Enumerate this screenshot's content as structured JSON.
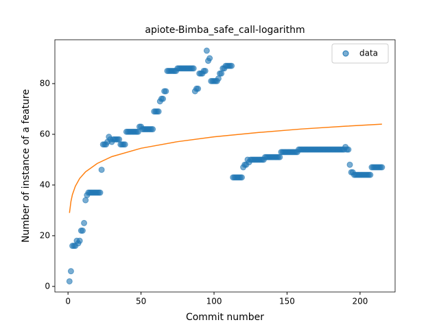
{
  "chart_data": {
    "type": "scatter",
    "title": "apiote-Bimba_safe_call-logarithm",
    "xlabel": "Commit number",
    "ylabel": "Number of instance of a feature",
    "x": [
      1,
      2,
      3,
      4,
      5,
      6,
      7,
      8,
      9,
      10,
      11,
      12,
      13,
      14,
      15,
      16,
      17,
      18,
      19,
      20,
      21,
      22,
      23,
      24,
      25,
      26,
      27,
      28,
      29,
      30,
      31,
      32,
      33,
      34,
      35,
      36,
      37,
      38,
      39,
      40,
      41,
      42,
      43,
      44,
      45,
      46,
      47,
      48,
      49,
      50,
      51,
      52,
      53,
      54,
      55,
      56,
      57,
      58,
      59,
      60,
      61,
      62,
      63,
      64,
      65,
      66,
      67,
      68,
      69,
      70,
      71,
      72,
      73,
      74,
      75,
      76,
      77,
      78,
      79,
      80,
      81,
      82,
      83,
      84,
      85,
      86,
      87,
      88,
      89,
      90,
      91,
      92,
      93,
      94,
      95,
      96,
      97,
      98,
      99,
      100,
      101,
      102,
      103,
      104,
      105,
      106,
      107,
      108,
      109,
      110,
      111,
      112,
      113,
      114,
      115,
      116,
      117,
      118,
      119,
      120,
      121,
      122,
      123,
      124,
      125,
      126,
      127,
      128,
      129,
      130,
      131,
      132,
      133,
      134,
      135,
      136,
      137,
      138,
      139,
      140,
      141,
      142,
      143,
      144,
      145,
      146,
      147,
      148,
      149,
      150,
      151,
      152,
      153,
      154,
      155,
      156,
      157,
      158,
      159,
      160,
      161,
      162,
      163,
      164,
      165,
      166,
      167,
      168,
      169,
      170,
      171,
      172,
      173,
      174,
      175,
      176,
      177,
      178,
      179,
      180,
      181,
      182,
      183,
      184,
      185,
      186,
      187,
      188,
      189,
      190,
      191,
      192,
      193,
      194,
      195,
      196,
      197,
      198,
      199,
      200,
      201,
      202,
      203,
      204,
      205,
      206,
      207,
      208,
      209,
      210,
      211,
      212,
      213,
      214,
      215
    ],
    "series": [
      {
        "name": "data",
        "color": "#1f77b4",
        "values": [
          2,
          6,
          16,
          16,
          16,
          18,
          17,
          18,
          22,
          22,
          25,
          34,
          36,
          37,
          37,
          37,
          37,
          37,
          37,
          37,
          37,
          37,
          46,
          56,
          56,
          56,
          57,
          59,
          58,
          57,
          58,
          58,
          58,
          58,
          58,
          56,
          56,
          56,
          56,
          61,
          61,
          61,
          61,
          61,
          61,
          61,
          61,
          61,
          63,
          63,
          62,
          62,
          62,
          62,
          62,
          62,
          62,
          62,
          69,
          69,
          69,
          69,
          73,
          74,
          74,
          77,
          77,
          85,
          85,
          85,
          85,
          85,
          85,
          85,
          86,
          86,
          86,
          86,
          86,
          86,
          86,
          86,
          86,
          86,
          86,
          86,
          77,
          78,
          78,
          84,
          84,
          84,
          85,
          85,
          93,
          89,
          90,
          81,
          81,
          81,
          81,
          81,
          82,
          84,
          84,
          86,
          86,
          87,
          87,
          87,
          87,
          87,
          43,
          43,
          43,
          43,
          43,
          43,
          43,
          47,
          48,
          48,
          50,
          49,
          50,
          50,
          50,
          50,
          50,
          50,
          50,
          50,
          50,
          50,
          51,
          51,
          51,
          51,
          51,
          51,
          51,
          51,
          51,
          51,
          51,
          53,
          53,
          53,
          53,
          53,
          53,
          53,
          53,
          53,
          53,
          53,
          53,
          54,
          54,
          54,
          54,
          54,
          54,
          54,
          54,
          54,
          54,
          54,
          54,
          54,
          54,
          54,
          54,
          54,
          54,
          54,
          54,
          54,
          54,
          54,
          54,
          54,
          54,
          54,
          54,
          54,
          54,
          54,
          54,
          55,
          54,
          54,
          48,
          45,
          45,
          44,
          44,
          44,
          44,
          44,
          44,
          44,
          44,
          44,
          44,
          44,
          44,
          47,
          47,
          47,
          47,
          47,
          47,
          47,
          47
        ]
      },
      {
        "type": "line",
        "color": "#ff7f0e",
        "x": [
          1,
          2,
          3,
          5,
          8,
          12,
          20,
          30,
          50,
          75,
          100,
          130,
          160,
          190,
          215
        ],
        "values": [
          29.0,
          33.5,
          36.2,
          39.5,
          42.6,
          45.2,
          48.5,
          51.2,
          54.5,
          57.1,
          59.0,
          60.7,
          62.1,
          63.2,
          64.0
        ]
      }
    ],
    "xlim": [
      -9,
      224
    ],
    "ylim": [
      -2.2,
      97.3
    ],
    "xticks": [
      0,
      50,
      100,
      150,
      200
    ],
    "yticks": [
      0,
      20,
      40,
      60,
      80
    ],
    "legend": "upper right"
  }
}
